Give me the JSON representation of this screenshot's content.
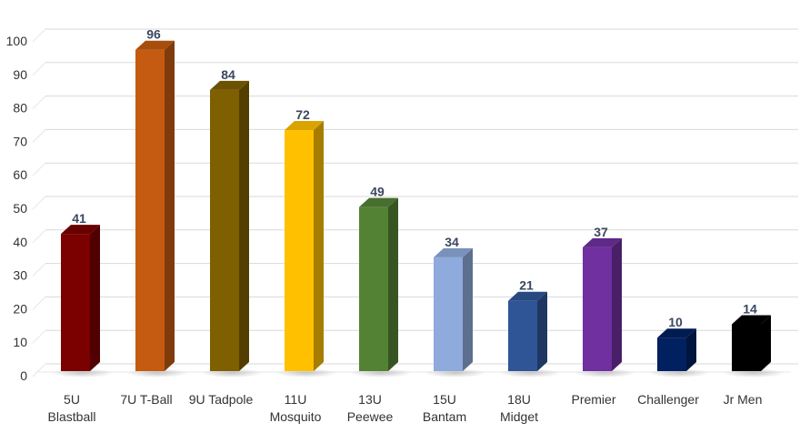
{
  "chart_data": {
    "type": "bar",
    "title": "",
    "xlabel": "",
    "ylabel": "",
    "ylim": [
      0,
      100
    ],
    "yticks": [
      0,
      10,
      20,
      30,
      40,
      50,
      60,
      70,
      80,
      90,
      100
    ],
    "grid": true,
    "style": "3d-bars",
    "categories": [
      [
        "5U",
        "Blastball"
      ],
      [
        "7U T-Ball"
      ],
      [
        "9U Tadpole"
      ],
      [
        "11U",
        "Mosquito"
      ],
      [
        "13U",
        "Peewee"
      ],
      [
        "15U",
        "Bantam"
      ],
      [
        "18U",
        "Midget"
      ],
      [
        "Premier"
      ],
      [
        "Challenger"
      ],
      [
        "Jr Men"
      ]
    ],
    "values": [
      41,
      96,
      84,
      72,
      49,
      34,
      21,
      37,
      10,
      14
    ],
    "colors": [
      "#7b0000",
      "#c55a11",
      "#7f6000",
      "#ffc000",
      "#548235",
      "#8faadc",
      "#2f5597",
      "#7030a0",
      "#002060",
      "#000000"
    ]
  }
}
